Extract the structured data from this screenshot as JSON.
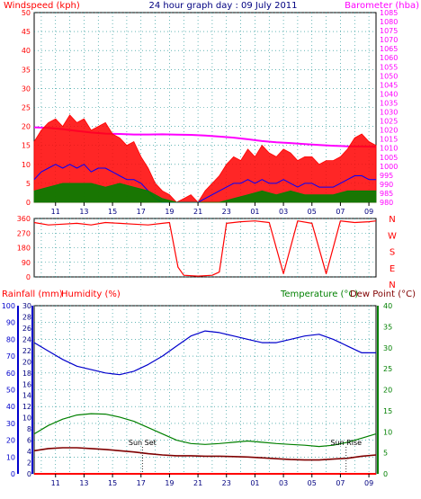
{
  "chart_data": [
    {
      "type": "line",
      "panel": "wind-pressure",
      "title": "24 hour graph day : 09 July 2011",
      "ylabel_left": "Windspeed (kph)",
      "ylabel_right": "Barometer (hba)",
      "x_ticks": [
        "11",
        "13",
        "15",
        "17",
        "19",
        "21",
        "23",
        "01",
        "03",
        "05",
        "07",
        "09"
      ],
      "ylim_left": [
        0,
        50
      ],
      "yticks_left": [
        0,
        5,
        10,
        15,
        20,
        25,
        30,
        35,
        40,
        45,
        50
      ],
      "ylim_right": [
        980,
        1085
      ],
      "yticks_right": [
        980,
        985,
        990,
        995,
        1000,
        1005,
        1010,
        1015,
        1020,
        1025,
        1030,
        1035,
        1040,
        1045,
        1050,
        1055,
        1060,
        1065,
        1070,
        1075,
        1080,
        1085
      ],
      "grid": true,
      "series": [
        {
          "name": "Barometer",
          "color": "#ff00ff",
          "axis": "right",
          "x": [
            9.5,
            10.5,
            11.5,
            12.5,
            13.5,
            14.5,
            15.5,
            16.5,
            17.5,
            18.5,
            19.5,
            20.5,
            21.5,
            22.5,
            23.5,
            24.5,
            25.5,
            26.5,
            27.5,
            28.5,
            29.5,
            30.5,
            31.5,
            32.5,
            33.5
          ],
          "values": [
            1021.5,
            1021.2,
            1020.5,
            1019.5,
            1018.6,
            1018.0,
            1017.8,
            1017.5,
            1017.5,
            1017.6,
            1017.4,
            1017.3,
            1016.9,
            1016.4,
            1015.8,
            1014.9,
            1013.9,
            1013.2,
            1012.8,
            1012.2,
            1011.7,
            1011.3,
            1011.0,
            1010.9,
            1010.7
          ]
        },
        {
          "name": "Gust",
          "color": "#ff0000",
          "axis": "left",
          "x": [
            9.5,
            10,
            10.5,
            11,
            11.5,
            12,
            12.5,
            13,
            13.5,
            14,
            14.5,
            15,
            15.5,
            16,
            16.5,
            17,
            17.5,
            18,
            18.5,
            19,
            19.5,
            20,
            20.5,
            21,
            21.5,
            22,
            22.5,
            23,
            23.5,
            24,
            24.5,
            25,
            25.5,
            26,
            26.5,
            27,
            27.5,
            28,
            28.5,
            29,
            29.5,
            30,
            30.5,
            31,
            31.5,
            32,
            32.5,
            33,
            33.5
          ],
          "values": [
            16,
            19,
            21,
            22,
            20,
            23,
            21,
            22,
            19,
            20,
            21,
            18,
            17,
            15,
            16,
            12,
            9,
            5,
            3,
            2,
            0,
            1,
            2,
            0,
            3,
            5,
            7,
            10,
            12,
            11,
            14,
            12,
            15,
            13,
            12,
            14,
            13,
            11,
            12,
            12,
            10,
            11,
            11,
            12,
            14,
            17,
            18,
            16,
            15
          ]
        },
        {
          "name": "Windspeed",
          "color": "#0000ff",
          "axis": "left",
          "x": [
            9.5,
            10,
            10.5,
            11,
            11.5,
            12,
            12.5,
            13,
            13.5,
            14,
            14.5,
            15,
            15.5,
            16,
            16.5,
            17,
            17.5,
            18,
            18.5,
            19,
            19.5,
            20,
            20.5,
            21,
            21.5,
            22,
            22.5,
            23,
            23.5,
            24,
            24.5,
            25,
            25.5,
            26,
            26.5,
            27,
            27.5,
            28,
            28.5,
            29,
            29.5,
            30,
            30.5,
            31,
            31.5,
            32,
            32.5,
            33,
            33.5
          ],
          "values": [
            6,
            8,
            9,
            10,
            9,
            10,
            9,
            10,
            8,
            9,
            9,
            8,
            7,
            6,
            6,
            5,
            3,
            1,
            0,
            0,
            0,
            0,
            0,
            0,
            1,
            2,
            3,
            4,
            5,
            5,
            6,
            5,
            6,
            5,
            5,
            6,
            5,
            4,
            5,
            5,
            4,
            4,
            4,
            5,
            6,
            7,
            7,
            6,
            6
          ]
        },
        {
          "name": "Wind mean",
          "color": "#008000",
          "axis": "left",
          "x": [
            9.5,
            10.5,
            11.5,
            12.5,
            13.5,
            14.5,
            15.5,
            16.5,
            17.5,
            18.5,
            19.5,
            20.5,
            21.5,
            22.5,
            23.5,
            24.5,
            25.5,
            26.5,
            27.5,
            28.5,
            29.5,
            30.5,
            31.5,
            32.5,
            33.5
          ],
          "values": [
            3,
            4,
            5,
            5,
            5,
            4,
            5,
            4,
            3,
            1,
            0,
            0,
            0,
            0,
            1,
            2,
            3,
            2,
            3,
            2,
            2,
            2,
            3,
            3,
            3
          ]
        }
      ]
    },
    {
      "type": "line",
      "panel": "wind-direction",
      "ylim": [
        0,
        360
      ],
      "yticks": [
        0,
        90,
        180,
        270,
        360
      ],
      "right_labels": [
        "N",
        "W",
        "S",
        "E",
        "N"
      ],
      "x_ticks": [
        "11",
        "13",
        "15",
        "17",
        "19",
        "21",
        "23",
        "01",
        "03",
        "05",
        "07",
        "09"
      ],
      "grid": true,
      "series": [
        {
          "name": "Wind direction",
          "color": "#ff0000",
          "x": [
            9.5,
            10.5,
            11.5,
            12.5,
            13.5,
            14.5,
            15.5,
            16.5,
            17.5,
            18.5,
            19,
            19.6,
            20,
            21,
            22,
            22.5,
            23,
            24,
            25,
            26,
            27,
            28,
            29,
            30,
            31,
            32,
            33,
            33.5
          ],
          "values": [
            335,
            320,
            325,
            330,
            320,
            335,
            330,
            325,
            320,
            330,
            335,
            60,
            10,
            5,
            10,
            30,
            330,
            340,
            345,
            335,
            20,
            345,
            330,
            20,
            345,
            335,
            340,
            345
          ]
        }
      ]
    },
    {
      "type": "line",
      "panel": "temp-humidity-rain",
      "ylabel_left1": "Rainfall (mm)",
      "ylabel_left2": "Humidity (%)",
      "ylabel_right1": "Temperature (°C)",
      "ylabel_right2": "Dew Point (°C)",
      "x_ticks": [
        "11",
        "13",
        "15",
        "17",
        "19",
        "21",
        "23",
        "01",
        "03",
        "05",
        "07",
        "09"
      ],
      "ylim_humidity": [
        0,
        100
      ],
      "yticks_humidity": [
        0,
        10,
        20,
        30,
        40,
        50,
        60,
        70,
        80,
        90,
        100
      ],
      "ylim_rain": [
        0,
        30
      ],
      "yticks_rain": [
        0,
        2,
        4,
        6,
        8,
        10,
        12,
        14,
        16,
        18,
        20,
        22,
        24,
        26,
        28,
        30
      ],
      "ylim_temp": [
        0,
        40
      ],
      "yticks_temp": [
        0,
        5,
        10,
        15,
        20,
        25,
        30,
        35,
        40
      ],
      "annotations": [
        {
          "text": "Sun Set",
          "x": 17.1
        },
        {
          "text": "Sun Rise",
          "x": 31.4
        }
      ],
      "grid": true,
      "series": [
        {
          "name": "Humidity",
          "color": "#0000cc",
          "axis": "humidity",
          "x": [
            9.5,
            10.5,
            11.5,
            12.5,
            13.5,
            14.5,
            15.5,
            16.5,
            17.5,
            18.5,
            19.5,
            20.5,
            21.5,
            22.5,
            23.5,
            24.5,
            25.5,
            26.5,
            27.5,
            28.5,
            29.5,
            30.5,
            31.5,
            32.5,
            33.5
          ],
          "values": [
            78,
            73,
            68,
            64,
            62,
            60,
            59,
            61,
            65,
            70,
            76,
            82,
            85,
            84,
            82,
            80,
            78,
            78,
            80,
            82,
            83,
            80,
            76,
            72,
            72
          ]
        },
        {
          "name": "Temperature",
          "color": "#008000",
          "axis": "temp",
          "x": [
            9.5,
            10.5,
            11.5,
            12.5,
            13.5,
            14.5,
            15.5,
            16.5,
            17.5,
            18.5,
            19.5,
            20.5,
            21.5,
            22.5,
            23.5,
            24.5,
            25.5,
            26.5,
            27.5,
            28.5,
            29.5,
            30.5,
            31.5,
            32.5,
            33.5
          ],
          "values": [
            9.5,
            11.5,
            13,
            14,
            14.3,
            14.2,
            13.5,
            12.5,
            11,
            9.5,
            8,
            7.2,
            7,
            7.2,
            7.5,
            7.8,
            7.5,
            7.2,
            7,
            6.8,
            6.5,
            6.8,
            7.5,
            8.5,
            9.5
          ]
        },
        {
          "name": "Dew Point",
          "color": "#800000",
          "axis": "temp",
          "x": [
            9.5,
            10.5,
            11.5,
            12.5,
            13.5,
            14.5,
            15.5,
            16.5,
            17.5,
            18.5,
            19.5,
            20.5,
            21.5,
            22.5,
            23.5,
            24.5,
            25.5,
            26.5,
            27.5,
            28.5,
            29.5,
            30.5,
            31.5,
            32.5,
            33.5
          ],
          "values": [
            5.5,
            6,
            6.2,
            6.2,
            6,
            5.8,
            5.5,
            5.2,
            4.8,
            4.5,
            4.3,
            4.3,
            4.2,
            4.2,
            4.1,
            4.0,
            3.8,
            3.6,
            3.4,
            3.3,
            3.3,
            3.5,
            3.7,
            4.2,
            4.5
          ]
        },
        {
          "name": "Rainfall",
          "color": "#ff0000",
          "axis": "rain",
          "x": [
            9.5,
            33.5
          ],
          "values": [
            0,
            0
          ]
        }
      ]
    }
  ]
}
